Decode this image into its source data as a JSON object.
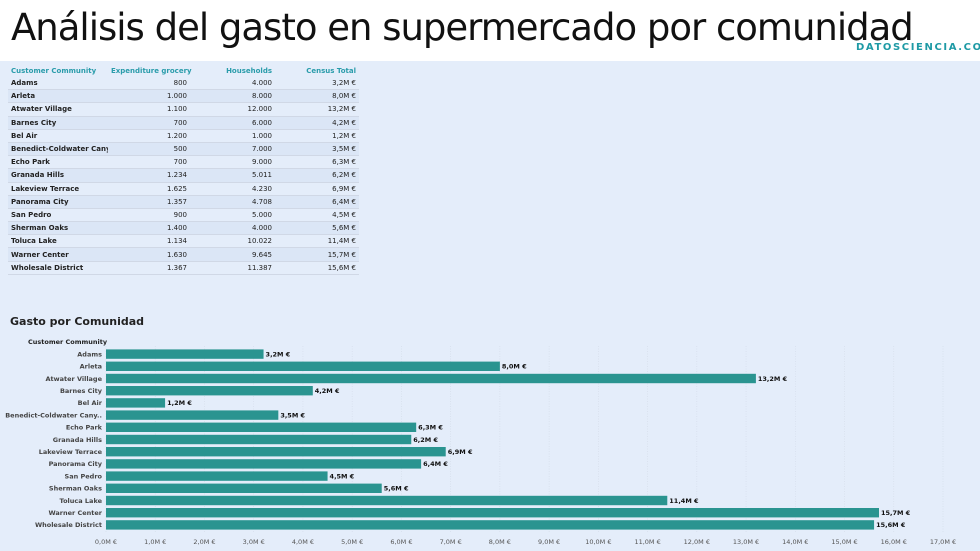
{
  "header": {
    "title": "Análisis del gasto en supermercado por comunidad",
    "brand": "DATOSCIENCIA.COM"
  },
  "table": {
    "columns": [
      "Customer Community",
      "Expenditure grocery",
      "Households",
      "Census Total"
    ],
    "rows": [
      [
        "Adams",
        "800",
        "4.000",
        "3,2M €"
      ],
      [
        "Arleta",
        "1.000",
        "8.000",
        "8,0M €"
      ],
      [
        "Atwater Village",
        "1.100",
        "12.000",
        "13,2M €"
      ],
      [
        "Barnes City",
        "700",
        "6.000",
        "4,2M €"
      ],
      [
        "Bel Air",
        "1.200",
        "1.000",
        "1,2M €"
      ],
      [
        "Benedict-Coldwater Cany..",
        "500",
        "7.000",
        "3,5M €"
      ],
      [
        "Echo Park",
        "700",
        "9.000",
        "6,3M €"
      ],
      [
        "Granada Hills",
        "1.234",
        "5.011",
        "6,2M €"
      ],
      [
        "Lakeview Terrace",
        "1.625",
        "4.230",
        "6,9M €"
      ],
      [
        "Panorama City",
        "1.357",
        "4.708",
        "6,4M €"
      ],
      [
        "San Pedro",
        "900",
        "5.000",
        "4,5M €"
      ],
      [
        "Sherman Oaks",
        "1.400",
        "4.000",
        "5,6M €"
      ],
      [
        "Toluca Lake",
        "1.134",
        "10.022",
        "11,4M €"
      ],
      [
        "Warner Center",
        "1.630",
        "9.645",
        "15,7M €"
      ],
      [
        "Wholesale District",
        "1.367",
        "11.387",
        "15,6M €"
      ]
    ]
  },
  "chart_data": {
    "type": "bar",
    "orientation": "horizontal",
    "title": "Gasto por Comunidad",
    "ylabel": "Customer Community",
    "xlabel": "",
    "categories": [
      "Adams",
      "Arleta",
      "Atwater Village",
      "Barnes City",
      "Bel Air",
      "Benedict-Coldwater Cany..",
      "Echo Park",
      "Granada Hills",
      "Lakeview Terrace",
      "Panorama City",
      "San Pedro",
      "Sherman Oaks",
      "Toluca Lake",
      "Warner Center",
      "Wholesale District"
    ],
    "values": [
      3.2,
      8.0,
      13.2,
      4.2,
      1.2,
      3.5,
      6.3,
      6.2,
      6.9,
      6.4,
      4.5,
      5.6,
      11.4,
      15.7,
      15.6
    ],
    "value_labels": [
      "3,2M €",
      "8,0M €",
      "13,2M €",
      "4,2M €",
      "1,2M €",
      "3,5M €",
      "6,3M €",
      "6,2M €",
      "6,9M €",
      "6,4M €",
      "4,5M €",
      "5,6M €",
      "11,4M €",
      "15,7M €",
      "15,6M €"
    ],
    "xlim": [
      0,
      17
    ],
    "xticks": [
      0,
      1,
      2,
      3,
      4,
      5,
      6,
      7,
      8,
      9,
      10,
      11,
      12,
      13,
      14,
      15,
      16,
      17
    ],
    "xtick_labels": [
      "0,0M €",
      "1,0M €",
      "2,0M €",
      "3,0M €",
      "4,0M €",
      "5,0M €",
      "6,0M €",
      "7,0M €",
      "8,0M €",
      "9,0M €",
      "10,0M €",
      "11,0M €",
      "12,0M €",
      "13,0M €",
      "14,0M €",
      "15,0M €",
      "16,0M €",
      "17,0M €"
    ],
    "unit": "M €",
    "grid": true,
    "bar_color": "#2a9490"
  }
}
